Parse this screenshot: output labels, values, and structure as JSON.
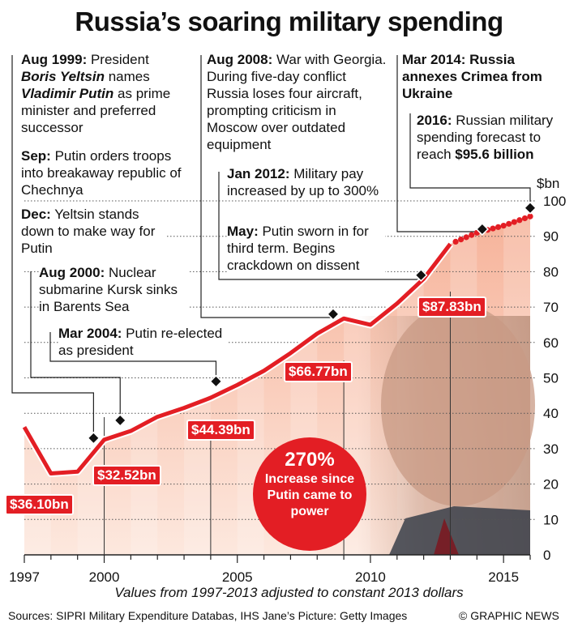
{
  "title": "Russia’s soaring military spending",
  "ylabel": "$bn",
  "annotations": {
    "a1999_head": "Aug 1999:",
    "a1999_t1": " President ",
    "a1999_n1": "Boris Yeltsin",
    "a1999_t2": " names ",
    "a1999_n2": "Vladimir Putin",
    "a1999_t3": " as prime minister and preferred successor",
    "sep_head": "Sep:",
    "sep_text": " Putin orders troops into breakaway republic of Chechnya",
    "dec_head": "Dec:",
    "dec_text": " Yeltsin stands down to make way for Putin",
    "a2000_head": "Aug 2000:",
    "a2000_text": " Nuclear submarine Kursk sinks in Barents Sea",
    "m2004_head": "Mar 2004:",
    "m2004_text": " Putin re-elected as president",
    "a2008_head": "Aug 2008:",
    "a2008_text": " War with Georgia. During five-day conflict Russia loses four aircraft, prompting criticism in Moscow over outdated equipment",
    "j2012_head": "Jan 2012:",
    "j2012_text": " Military pay increased by up to 300%",
    "may_head": "May:",
    "may_text": " Putin sworn in for third term. Begins crackdown on dissent",
    "m2014_head": "Mar 2014: Russia annexes Crimea from Ukraine",
    "y2016_head": "2016:",
    "y2016_text": " Russian military spending forecast to reach ",
    "y2016_value": "$95.6 billion"
  },
  "bubble": {
    "pct": "270%",
    "text": "Increase since Putin came to power"
  },
  "footer": {
    "note": "Values from 1997-2013 adjusted to constant 2013 dollars",
    "sources": "Sources: SIPRI Military Expenditure Databas, IHS Jane’s    Picture: Getty Images",
    "credit": "© GRAPHIC NEWS"
  },
  "colors": {
    "line": "#e31e24",
    "fill_top": "#f6b39a",
    "fill_bottom": "#fde8de"
  },
  "chart_data": {
    "type": "line",
    "title": "Russia’s soaring military spending",
    "ylabel": "$bn",
    "xlim": [
      1997,
      2016
    ],
    "ylim": [
      0,
      100
    ],
    "x_ticks": [
      1997,
      2000,
      2005,
      2010,
      2015
    ],
    "y_ticks": [
      0,
      10,
      20,
      30,
      40,
      50,
      60,
      70,
      80,
      90,
      100
    ],
    "series": [
      {
        "values": [
          {
            "x": 1997,
            "y": 36.1
          },
          {
            "x": 1998,
            "y": 23
          },
          {
            "x": 1999,
            "y": 23.5
          },
          {
            "x": 2000,
            "y": 32.52
          },
          {
            "x": 2001,
            "y": 35
          },
          {
            "x": 2002,
            "y": 39
          },
          {
            "x": 2003,
            "y": 41.5
          },
          {
            "x": 2004,
            "y": 44.39
          },
          {
            "x": 2005,
            "y": 48
          },
          {
            "x": 2006,
            "y": 52
          },
          {
            "x": 2007,
            "y": 57
          },
          {
            "x": 2008,
            "y": 62.5
          },
          {
            "x": 2009,
            "y": 66.77
          },
          {
            "x": 2010,
            "y": 65
          },
          {
            "x": 2011,
            "y": 71
          },
          {
            "x": 2012,
            "y": 78
          },
          {
            "x": 2013,
            "y": 87.83
          }
        ]
      },
      {
        "values": [
          {
            "x": 2013,
            "y": 87.83
          },
          {
            "x": 2014,
            "y": 91
          },
          {
            "x": 2015,
            "y": 93
          },
          {
            "x": 2016,
            "y": 95.6
          }
        ]
      }
    ],
    "data_labels": [
      {
        "x": 1997,
        "y": 36.1,
        "text": "$36.10bn"
      },
      {
        "x": 2000,
        "y": 32.52,
        "text": "$32.52bn"
      },
      {
        "x": 2004,
        "y": 44.39,
        "text": "$44.39bn"
      },
      {
        "x": 2009,
        "y": 66.77,
        "text": "$66.77bn"
      },
      {
        "x": 2013,
        "y": 87.83,
        "text": "$87.83bn"
      }
    ],
    "event_markers": [
      {
        "x": 1999.6,
        "y": 33
      },
      {
        "x": 2000.6,
        "y": 38
      },
      {
        "x": 2004.2,
        "y": 49
      },
      {
        "x": 2008.6,
        "y": 68
      },
      {
        "x": 2011.9,
        "y": 79
      },
      {
        "x": 2014.2,
        "y": 92
      },
      {
        "x": 2016,
        "y": 98
      }
    ],
    "grid": "horizontal dotted"
  }
}
